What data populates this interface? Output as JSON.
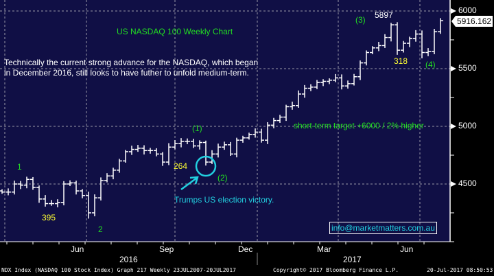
{
  "chart_data": {
    "type": "ohlc",
    "title": "US NASDAQ 100 Weekly Chart",
    "frequency": "Weekly",
    "ylim": [
      4000,
      6000
    ],
    "yticks": [
      4500,
      5000,
      5500,
      6000
    ],
    "grid": true,
    "last_price": "5916.162",
    "x_month_labels": [
      "Jun",
      "Sep",
      "Dec",
      "Mar",
      "Jun"
    ],
    "x_year_labels": [
      "2016",
      "2017"
    ],
    "closes": [
      4430,
      4430,
      4500,
      4490,
      4540,
      4470,
      4370,
      4330,
      4330,
      4340,
      4500,
      4510,
      4440,
      4400,
      4250,
      4380,
      4530,
      4570,
      4620,
      4700,
      4780,
      4800,
      4810,
      4790,
      4790,
      4760,
      4690,
      4820,
      4850,
      4870,
      4870,
      4830,
      4860,
      4690,
      4760,
      4820,
      4840,
      4760,
      4880,
      4900,
      4930,
      4950,
      4880,
      5010,
      5050,
      5080,
      5170,
      5180,
      5280,
      5330,
      5340,
      5380,
      5390,
      5400,
      5420,
      5350,
      5370,
      5430,
      5550,
      5640,
      5680,
      5700,
      5770,
      5880,
      5660,
      5720,
      5760,
      5800,
      5640,
      5650,
      5820,
      5916
    ],
    "notable_lows": {
      "14": 4200,
      "33": 4660,
      "64": 5620,
      "68": 5590
    },
    "notable_highs": {
      "63": 5897
    }
  },
  "annotations": {
    "subtitle": "US NASDAQ 100 Weekly Chart",
    "commentary_line1": "Technically the current strong advance for the NASDAQ, which began",
    "commentary_line2": "in December 2016, still looks to have futher to unfold medium-term.",
    "target": "short-term target +6000 / 2% higher",
    "trump": "Trumps US election victory.",
    "wave_1": "1",
    "wave_2": "2",
    "wave_p1": "(1)",
    "wave_p2": "(2)",
    "wave_p3": "(3)",
    "wave_p4": "(4)",
    "val_395": "395",
    "val_264": "264",
    "val_318": "318",
    "val_5897": "5897",
    "email": "info@marketmatters.com.au"
  },
  "footer": {
    "left": "NDX Index (NASDAQ 100 Stock Index) Graph 217  Weekly 23JUL2007-20JUL2017",
    "center": "Copyright© 2017 Bloomberg Finance L.P.",
    "right": "20-Jul-2017 08:50:53"
  },
  "colors": {
    "background": "#100f45",
    "bars": "#ffffff",
    "wave": "#22dd22",
    "values": "#ffff33",
    "trump": "#22d0e0"
  }
}
